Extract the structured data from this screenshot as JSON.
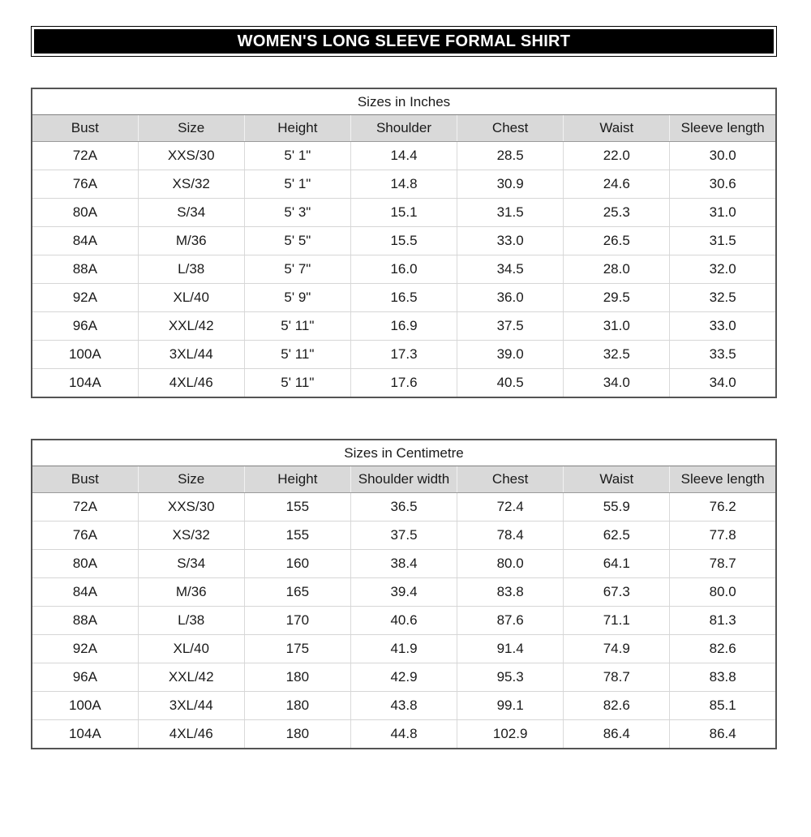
{
  "page": {
    "banner_title": "WOMEN'S LONG SLEEVE FORMAL SHIRT"
  },
  "colors": {
    "banner_bg": "#000000",
    "banner_text": "#ffffff",
    "header_row_bg": "#d9d9d9",
    "grid_line": "#d6d6d6",
    "outer_border": "#545454",
    "text": "#1a1a1a"
  },
  "tables": [
    {
      "title": "Sizes in Inches",
      "columns": [
        "Bust",
        "Size",
        "Height",
        "Shoulder",
        "Chest",
        "Waist",
        "Sleeve length"
      ],
      "rows": [
        [
          "72A",
          "XXS/30",
          "5' 1\"",
          "14.4",
          "28.5",
          "22.0",
          "30.0"
        ],
        [
          "76A",
          "XS/32",
          "5' 1\"",
          "14.8",
          "30.9",
          "24.6",
          "30.6"
        ],
        [
          "80A",
          "S/34",
          "5' 3\"",
          "15.1",
          "31.5",
          "25.3",
          "31.0"
        ],
        [
          "84A",
          "M/36",
          "5' 5\"",
          "15.5",
          "33.0",
          "26.5",
          "31.5"
        ],
        [
          "88A",
          "L/38",
          "5' 7\"",
          "16.0",
          "34.5",
          "28.0",
          "32.0"
        ],
        [
          "92A",
          "XL/40",
          "5' 9\"",
          "16.5",
          "36.0",
          "29.5",
          "32.5"
        ],
        [
          "96A",
          "XXL/42",
          "5' 11\"",
          "16.9",
          "37.5",
          "31.0",
          "33.0"
        ],
        [
          "100A",
          "3XL/44",
          "5' 11\"",
          "17.3",
          "39.0",
          "32.5",
          "33.5"
        ],
        [
          "104A",
          "4XL/46",
          "5' 11\"",
          "17.6",
          "40.5",
          "34.0",
          "34.0"
        ]
      ]
    },
    {
      "title": "Sizes in Centimetre",
      "columns": [
        "Bust",
        "Size",
        "Height",
        "Shoulder width",
        "Chest",
        "Waist",
        "Sleeve length"
      ],
      "rows": [
        [
          "72A",
          "XXS/30",
          "155",
          "36.5",
          "72.4",
          "55.9",
          "76.2"
        ],
        [
          "76A",
          "XS/32",
          "155",
          "37.5",
          "78.4",
          "62.5",
          "77.8"
        ],
        [
          "80A",
          "S/34",
          "160",
          "38.4",
          "80.0",
          "64.1",
          "78.7"
        ],
        [
          "84A",
          "M/36",
          "165",
          "39.4",
          "83.8",
          "67.3",
          "80.0"
        ],
        [
          "88A",
          "L/38",
          "170",
          "40.6",
          "87.6",
          "71.1",
          "81.3"
        ],
        [
          "92A",
          "XL/40",
          "175",
          "41.9",
          "91.4",
          "74.9",
          "82.6"
        ],
        [
          "96A",
          "XXL/42",
          "180",
          "42.9",
          "95.3",
          "78.7",
          "83.8"
        ],
        [
          "100A",
          "3XL/44",
          "180",
          "43.8",
          "99.1",
          "82.6",
          "85.1"
        ],
        [
          "104A",
          "4XL/46",
          "180",
          "44.8",
          "102.9",
          "86.4",
          "86.4"
        ]
      ]
    }
  ]
}
